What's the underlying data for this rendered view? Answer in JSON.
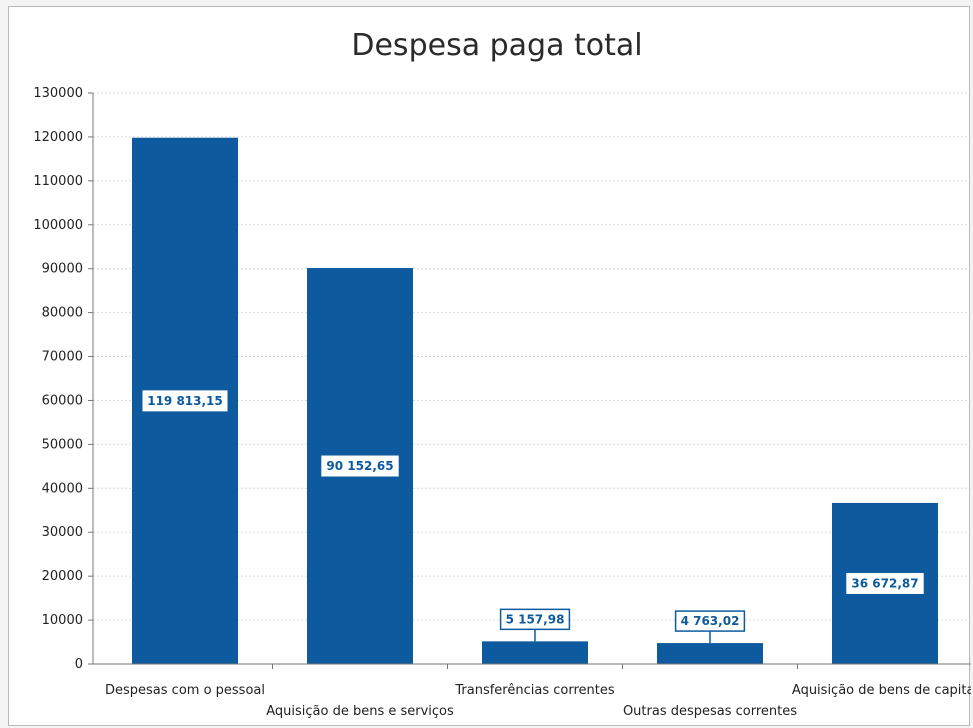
{
  "chart_data": {
    "type": "bar",
    "title": "Despesa paga total",
    "categories": [
      "Despesas com o pessoal",
      "Aquisição de bens e serviços",
      "Transferências correntes",
      "Outras despesas correntes",
      "Aquisição de bens de capital"
    ],
    "values": [
      119813.15,
      90152.65,
      5157.98,
      4763.02,
      36672.87
    ],
    "data_labels": [
      "119 813,15",
      "90 152,65",
      "5 157,98",
      "4 763,02",
      "36 672,87"
    ],
    "ylim": [
      0,
      130000
    ],
    "yticks": [
      "0",
      "10000",
      "20000",
      "30000",
      "40000",
      "50000",
      "60000",
      "70000",
      "80000",
      "90000",
      "100000",
      "110000",
      "120000",
      "130000"
    ],
    "grid": true,
    "legend": "none",
    "bar_color": "#0d5a9e"
  }
}
